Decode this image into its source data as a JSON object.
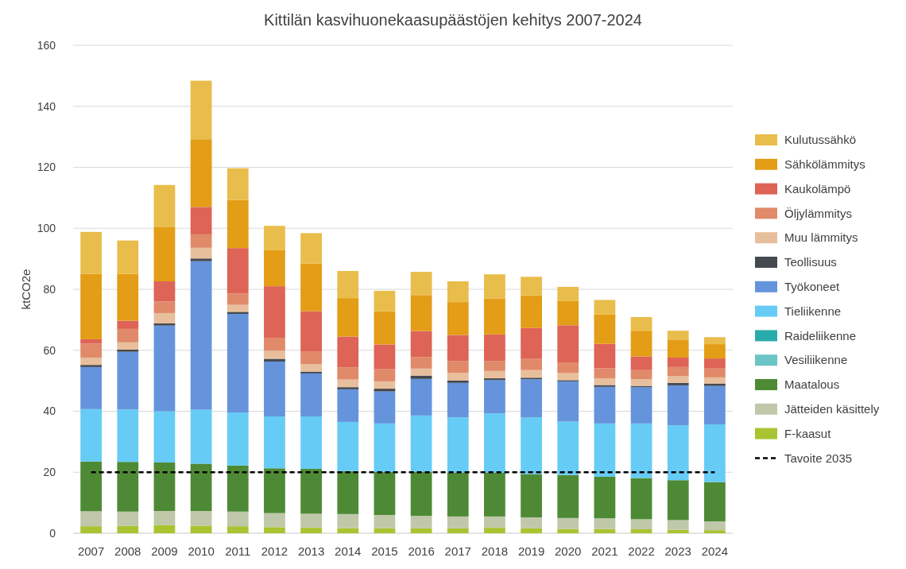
{
  "chart_data": {
    "type": "bar",
    "stacked": true,
    "title": "Kittilän kasvihuonekaasupäästöjen kehitys 2007-2024",
    "ylabel": "ktCO2e",
    "categories": [
      "2007",
      "2008",
      "2009",
      "2010",
      "2011",
      "2012",
      "2013",
      "2014",
      "2015",
      "2016",
      "2017",
      "2018",
      "2019",
      "2020",
      "2021",
      "2022",
      "2023",
      "2024"
    ],
    "series": [
      {
        "name": "F-kaasut",
        "color": "#a8c431",
        "values": [
          2.3,
          2.4,
          2.7,
          2.5,
          2.3,
          2.0,
          1.8,
          1.7,
          1.7,
          1.6,
          1.6,
          1.8,
          1.6,
          1.4,
          1.4,
          1.3,
          1.1,
          1.0
        ]
      },
      {
        "name": "Jätteiden käsittely",
        "color": "#c0c8aa",
        "values": [
          4.9,
          4.7,
          4.6,
          4.8,
          4.8,
          4.6,
          4.6,
          4.6,
          4.3,
          4.1,
          3.9,
          3.7,
          3.6,
          3.6,
          3.5,
          3.3,
          3.2,
          2.9
        ]
      },
      {
        "name": "Maatalous",
        "color": "#4e8a35",
        "values": [
          16.3,
          16.3,
          15.9,
          15.5,
          15.1,
          14.7,
          14.7,
          14.1,
          14.1,
          14.5,
          14.3,
          14.3,
          14.2,
          14.1,
          13.6,
          13.5,
          13.1,
          12.9
        ]
      },
      {
        "name": "Vesiliikenne",
        "color": "#6cc5c5",
        "values": [
          0,
          0,
          0,
          0,
          0,
          0,
          0,
          0,
          0,
          0,
          0,
          0,
          0,
          0,
          0,
          0,
          0,
          0
        ]
      },
      {
        "name": "Raideliikenne",
        "color": "#2aabab",
        "values": [
          0,
          0,
          0,
          0,
          0,
          0,
          0,
          0,
          0,
          0,
          0,
          0,
          0,
          0,
          0,
          0,
          0,
          0
        ]
      },
      {
        "name": "Tieliikenne",
        "color": "#66ccf5",
        "values": [
          17.2,
          17.2,
          16.8,
          17.7,
          17.4,
          17.0,
          17.2,
          16.1,
          15.9,
          18.4,
          18.2,
          19.5,
          18.6,
          17.5,
          17.5,
          17.9,
          18.0,
          18.9
        ]
      },
      {
        "name": "Työkoneet",
        "color": "#6594dd",
        "values": [
          13.8,
          18.9,
          28.1,
          48.7,
          32.3,
          18.0,
          14.1,
          10.7,
          10.5,
          12.0,
          11.3,
          10.9,
          12.5,
          13.2,
          12.0,
          11.9,
          13.1,
          12.6
        ]
      },
      {
        "name": "Teollisuus",
        "color": "#444950",
        "values": [
          0.7,
          0.7,
          0.7,
          0.9,
          0.7,
          0.9,
          0.6,
          0.7,
          0.9,
          1.1,
          0.8,
          0.6,
          0.5,
          0.4,
          0.6,
          0.4,
          0.8,
          0.8
        ]
      },
      {
        "name": "Muu lämmitys",
        "color": "#e8bf9c",
        "values": [
          2.4,
          2.4,
          3.4,
          3.5,
          2.3,
          2.6,
          2.4,
          2.5,
          2.4,
          2.3,
          2.5,
          2.4,
          2.5,
          2.3,
          2.2,
          2.2,
          2.2,
          2.0
        ]
      },
      {
        "name": "Öljylämmitys",
        "color": "#e08a6a",
        "values": [
          4.6,
          4.4,
          3.8,
          4.4,
          3.7,
          4.3,
          4.1,
          4.0,
          4.0,
          3.8,
          3.9,
          3.3,
          3.8,
          3.5,
          3.3,
          3.0,
          3.0,
          2.9
        ]
      },
      {
        "name": "Kaukolämpö",
        "color": "#dd6456",
        "values": [
          1.4,
          2.7,
          6.6,
          9.0,
          14.9,
          16.9,
          13.3,
          10.1,
          8.1,
          8.5,
          8.5,
          8.7,
          10.0,
          12.2,
          8.0,
          4.5,
          3.1,
          3.3
        ]
      },
      {
        "name": "Sähkölämmitys",
        "color": "#e39d16",
        "values": [
          21.4,
          15.3,
          17.9,
          22.2,
          15.8,
          11.8,
          15.6,
          12.6,
          10.9,
          11.8,
          10.8,
          11.8,
          10.7,
          7.9,
          9.6,
          8.4,
          5.9,
          4.7
        ]
      },
      {
        "name": "Kulutussähkö",
        "color": "#e9bd4b",
        "values": [
          13.8,
          11.0,
          13.7,
          19.2,
          10.4,
          8.0,
          10.0,
          8.9,
          6.7,
          7.6,
          6.8,
          7.9,
          6.1,
          4.7,
          4.8,
          4.5,
          2.9,
          2.3
        ]
      }
    ],
    "ref_lines": [
      {
        "axis": "y",
        "value": 20,
        "label": "Tavoite 2035",
        "color": "#000000",
        "line_style": "dashed"
      }
    ],
    "ylim": [
      0,
      160
    ],
    "yticks": [
      0,
      20,
      40,
      60,
      80,
      100,
      120,
      140,
      160
    ],
    "grid": "y",
    "legend": "right"
  }
}
